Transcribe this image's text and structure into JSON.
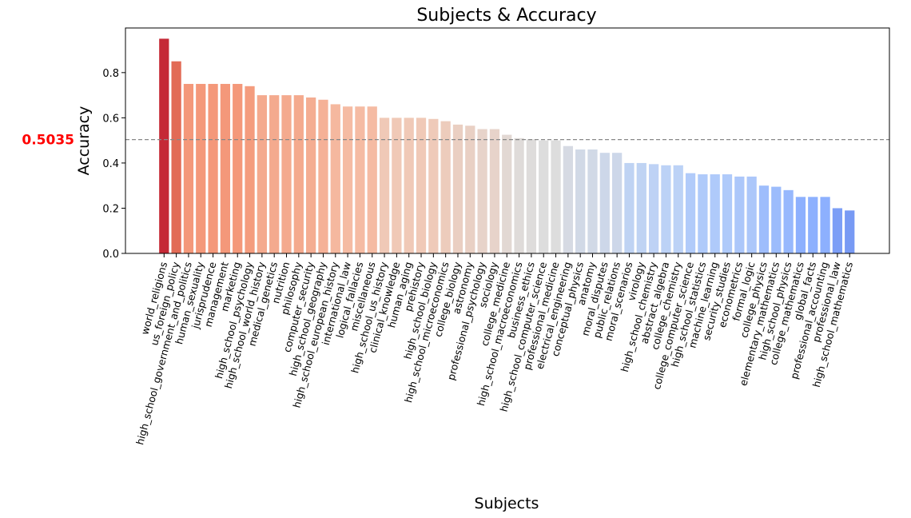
{
  "chart_data": {
    "type": "bar",
    "title": "Subjects & Accuracy",
    "x_label": "Subjects",
    "y_label": "Accuracy",
    "categories": [
      "world_religions",
      "us_foreign_policy",
      "high_school_government_and_politics",
      "human_sexuality",
      "jurisprudence",
      "management",
      "marketing",
      "high_school_psychology",
      "high_school_world_history",
      "medical_genetics",
      "nutrition",
      "philosophy",
      "computer_security",
      "high_school_geography",
      "high_school_european_history",
      "international_law",
      "logical_fallacies",
      "miscellaneous",
      "high_school_us_history",
      "clinical_knowledge",
      "human_aging",
      "prehistory",
      "high_school_biology",
      "high_school_microeconomics",
      "college_biology",
      "astronomy",
      "professional_psychology",
      "sociology",
      "college_medicine",
      "high_school_macroeconomics",
      "business_ethics",
      "high_school_computer_science",
      "professional_medicine",
      "electrical_engineering",
      "conceptual_physics",
      "anatomy",
      "moral_disputes",
      "public_relations",
      "moral_scenarios",
      "virology",
      "high_school_chemistry",
      "abstract_algebra",
      "college_chemistry",
      "college_computer_science",
      "high_school_statistics",
      "machine_learning",
      "security_studies",
      "econometrics",
      "formal_logic",
      "college_physics",
      "elementary_mathematics",
      "high_school_physics",
      "college_mathematics",
      "global_facts",
      "professional_accounting",
      "professional_law",
      "high_school_mathematics"
    ],
    "values": [
      0.95,
      0.85,
      0.75,
      0.75,
      0.75,
      0.75,
      0.75,
      0.74,
      0.7,
      0.7,
      0.7,
      0.7,
      0.69,
      0.68,
      0.66,
      0.65,
      0.65,
      0.65,
      0.6,
      0.6,
      0.6,
      0.6,
      0.595,
      0.585,
      0.57,
      0.565,
      0.55,
      0.55,
      0.525,
      0.51,
      0.505,
      0.5,
      0.5,
      0.475,
      0.46,
      0.46,
      0.445,
      0.445,
      0.4,
      0.4,
      0.395,
      0.39,
      0.39,
      0.355,
      0.35,
      0.35,
      0.35,
      0.34,
      0.34,
      0.3,
      0.295,
      0.28,
      0.25,
      0.25,
      0.25,
      0.2,
      0.19
    ],
    "colormap": "coolwarm",
    "ylim": [
      0,
      0.9975
    ],
    "yticks": [
      {
        "value": 0,
        "label": "0.0"
      },
      0.2,
      0.4,
      0.6,
      0.8
    ],
    "threshold": 0.5035,
    "threshold_color": "red"
  }
}
